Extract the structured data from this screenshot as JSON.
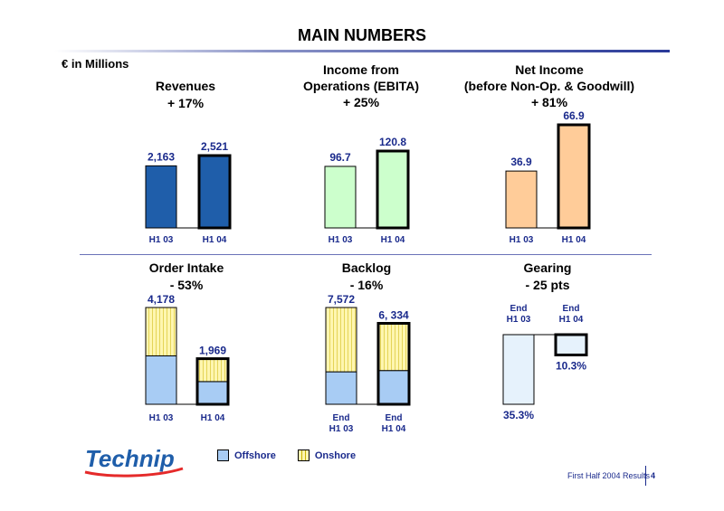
{
  "page_title": "MAIN NUMBERS",
  "unit_label": "€  in Millions",
  "footer": {
    "text": "First Half 2004 Results",
    "page": "4"
  },
  "logo_text": "Technip",
  "legend": [
    {
      "label": "Offshore",
      "color": "#a8ccf4"
    },
    {
      "label": "Onshore",
      "color": "#fff6b0"
    }
  ],
  "chart_data": [
    {
      "type": "bar",
      "title_lines": [
        "Revenues",
        "+ 17%"
      ],
      "categories": [
        "H1 03",
        "H1 04"
      ],
      "values": [
        2163,
        2521
      ],
      "value_labels": [
        "2,163",
        "2,521"
      ],
      "color": "#1f5eaa",
      "highlight": [
        false,
        true
      ]
    },
    {
      "type": "bar",
      "title_lines": [
        "Income from",
        "Operations (EBITA)",
        "+ 25%"
      ],
      "categories": [
        "H1 03",
        "H1 04"
      ],
      "values": [
        96.7,
        120.8
      ],
      "value_labels": [
        "96.7",
        "120.8"
      ],
      "color": "#ccffcc",
      "highlight": [
        false,
        true
      ]
    },
    {
      "type": "bar",
      "title_lines": [
        "Net Income",
        "(before Non-Op. & Goodwill)",
        "+ 81%"
      ],
      "categories": [
        "H1 03",
        "H1 04"
      ],
      "values": [
        36.9,
        66.9
      ],
      "value_labels": [
        "36.9",
        "66.9"
      ],
      "color": "#ffcc99",
      "highlight": [
        false,
        true
      ]
    },
    {
      "type": "stacked-bar",
      "title_lines": [
        "Order Intake",
        "- 53%"
      ],
      "categories": [
        "H1 03",
        "H1 04"
      ],
      "totals": [
        4178,
        1969
      ],
      "value_labels": [
        "4,178",
        "1,969"
      ],
      "series": [
        {
          "name": "Offshore",
          "values": [
            2090,
            980
          ],
          "color": "#a8ccf4"
        },
        {
          "name": "Onshore",
          "values": [
            2088,
            989
          ],
          "color": "#fff6b0"
        }
      ],
      "highlight": [
        false,
        true
      ]
    },
    {
      "type": "stacked-bar",
      "title_lines": [
        "Backlog",
        "- 16%"
      ],
      "categories": [
        [
          "End",
          "H1 03"
        ],
        [
          "End",
          "H1 04"
        ]
      ],
      "totals": [
        7572,
        6334
      ],
      "value_labels": [
        "7,572",
        "6, 334"
      ],
      "series": [
        {
          "name": "Offshore",
          "values": [
            2540,
            2640
          ],
          "color": "#a8ccf4"
        },
        {
          "name": "Onshore",
          "values": [
            5032,
            3694
          ],
          "color": "#fff6b0"
        }
      ],
      "highlight": [
        false,
        true
      ]
    },
    {
      "type": "bar",
      "title_lines": [
        "Gearing",
        "- 25 pts"
      ],
      "categories": [
        [
          "End",
          "H1 03"
        ],
        [
          "End",
          "H1 04"
        ]
      ],
      "values": [
        35.3,
        10.3
      ],
      "value_labels": [
        "35.3%",
        "10.3%"
      ],
      "color": "#e6f2fc",
      "highlight": [
        false,
        true
      ],
      "direction": "down"
    }
  ]
}
